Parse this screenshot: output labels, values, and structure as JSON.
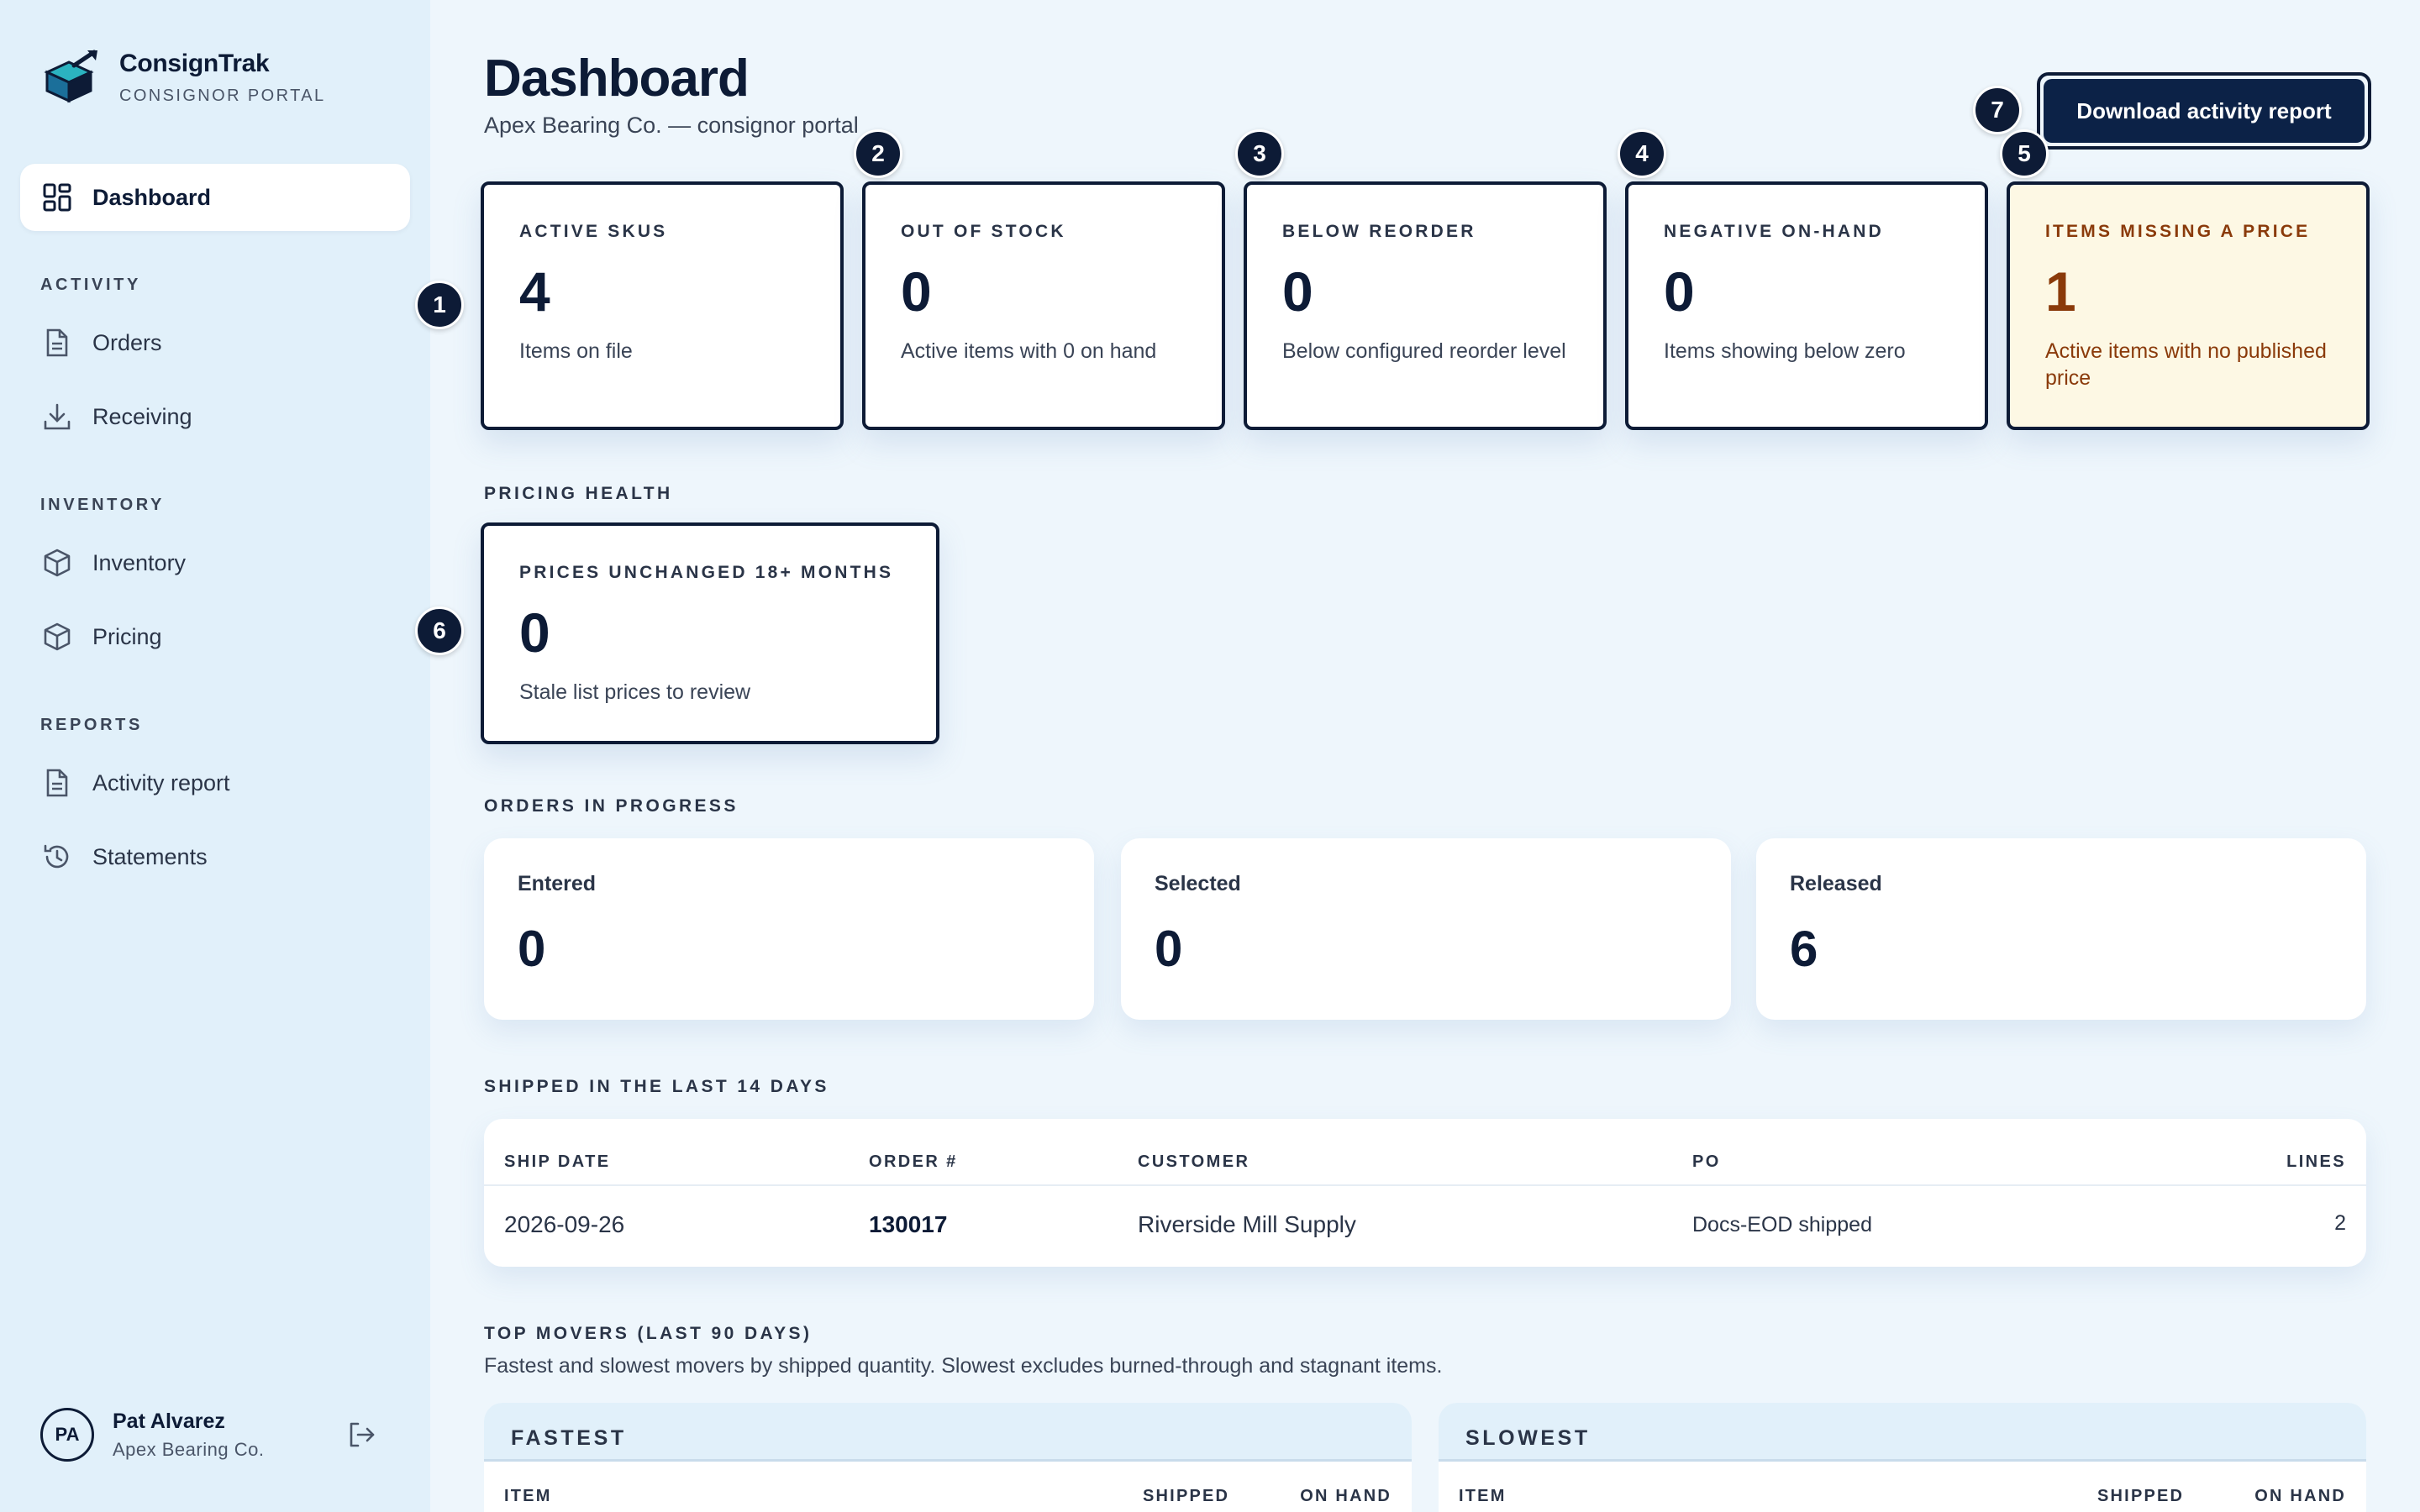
{
  "brand": {
    "name": "ConsignTrak",
    "subtitle": "CONSIGNOR PORTAL"
  },
  "sidebar": {
    "dashboard": "Dashboard",
    "sections": {
      "activity": "ACTIVITY",
      "inventory": "INVENTORY",
      "reports": "REPORTS"
    },
    "items": {
      "orders": "Orders",
      "receiving": "Receiving",
      "inventory": "Inventory",
      "pricing": "Pricing",
      "activity_report": "Activity report",
      "statements": "Statements"
    }
  },
  "user": {
    "initials": "PA",
    "name": "Pat Alvarez",
    "org": "Apex Bearing Co."
  },
  "header": {
    "title": "Dashboard",
    "subtitle": "Apex Bearing Co. — consignor portal",
    "download_label": "Download activity report"
  },
  "stats": [
    {
      "label": "ACTIVE SKUS",
      "value": "4",
      "desc": "Items on file"
    },
    {
      "label": "OUT OF STOCK",
      "value": "0",
      "desc": "Active items with 0 on hand"
    },
    {
      "label": "BELOW REORDER",
      "value": "0",
      "desc": "Below configured reorder level"
    },
    {
      "label": "NEGATIVE ON-HAND",
      "value": "0",
      "desc": "Items showing below zero"
    },
    {
      "label": "ITEMS MISSING A PRICE",
      "value": "1",
      "desc": "Active items with no published price"
    }
  ],
  "pricing_health": {
    "section": "PRICING HEALTH",
    "label": "PRICES UNCHANGED 18+ MONTHS",
    "value": "0",
    "desc": "Stale list prices to review"
  },
  "orders_in_progress": {
    "section": "ORDERS IN PROGRESS",
    "cards": [
      {
        "label": "Entered",
        "value": "0"
      },
      {
        "label": "Selected",
        "value": "0"
      },
      {
        "label": "Released",
        "value": "6"
      }
    ]
  },
  "shipped": {
    "section": "SHIPPED IN THE LAST 14 DAYS",
    "headers": {
      "ship_date": "SHIP DATE",
      "order": "ORDER #",
      "customer": "CUSTOMER",
      "po": "PO",
      "lines": "LINES"
    },
    "rows": [
      {
        "ship_date": "2026-09-26",
        "order": "130017",
        "customer": "Riverside Mill Supply",
        "po": "Docs-EOD shipped",
        "lines": "2"
      }
    ]
  },
  "top_movers": {
    "section": "TOP MOVERS (LAST 90 DAYS)",
    "desc": "Fastest and slowest movers by shipped quantity. Slowest excludes burned-through and stagnant items.",
    "fastest": {
      "title": "FASTEST",
      "col_item": "ITEM",
      "col_shipped": "SHIPPED",
      "col_on_hand": "ON HAND"
    },
    "slowest": {
      "title": "SLOWEST",
      "col_item": "ITEM",
      "col_shipped": "SHIPPED",
      "col_on_hand": "ON HAND"
    }
  },
  "badges": [
    "1",
    "2",
    "3",
    "4",
    "5",
    "6",
    "7"
  ],
  "colors": {
    "primary": "#0d1b36",
    "button": "#0c2247",
    "sidebar": "#e1f0fa",
    "background": "#eef6fc",
    "warn_bg": "#fdf8e4",
    "warn_text": "#8a3a0a"
  }
}
